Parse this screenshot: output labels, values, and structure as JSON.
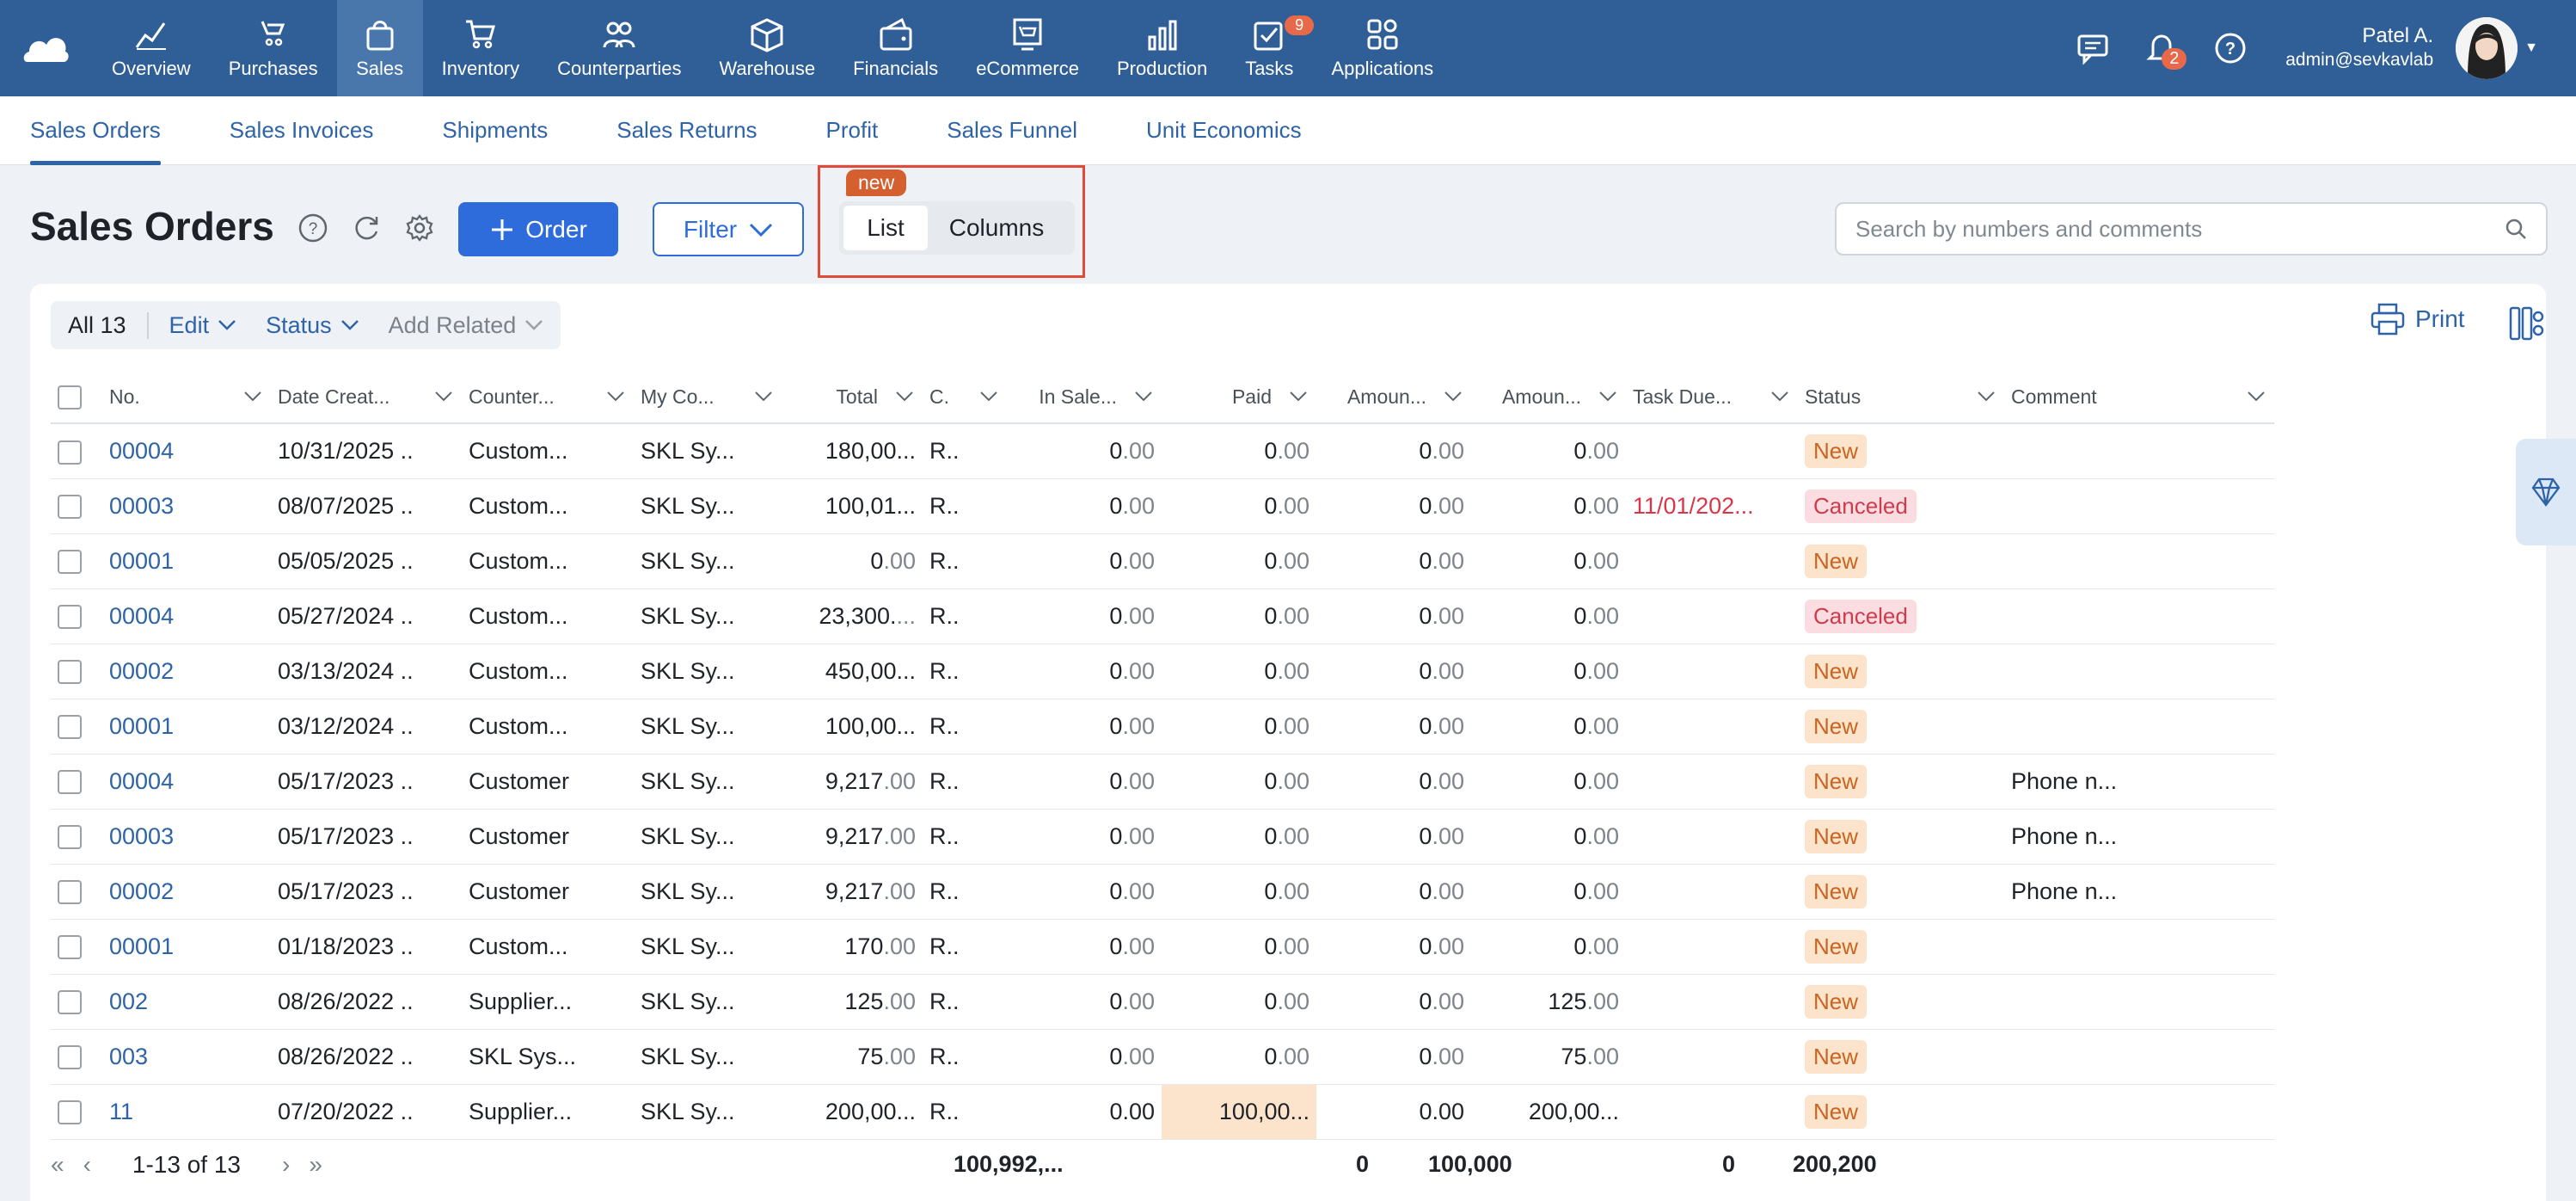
{
  "nav": {
    "items": [
      {
        "label": "Overview",
        "icon": "overview-icon"
      },
      {
        "label": "Purchases",
        "icon": "purchases-icon"
      },
      {
        "label": "Sales",
        "icon": "sales-icon",
        "active": true
      },
      {
        "label": "Inventory",
        "icon": "inventory-icon"
      },
      {
        "label": "Counterparties",
        "icon": "counterparties-icon"
      },
      {
        "label": "Warehouse",
        "icon": "warehouse-icon"
      },
      {
        "label": "Financials",
        "icon": "financials-icon"
      },
      {
        "label": "eCommerce",
        "icon": "ecommerce-icon"
      },
      {
        "label": "Production",
        "icon": "production-icon"
      },
      {
        "label": "Tasks",
        "icon": "tasks-icon",
        "badge": "9"
      },
      {
        "label": "Applications",
        "icon": "applications-icon"
      }
    ],
    "notifications_badge": "2",
    "user_name": "Patel A.",
    "user_email": "admin@sevkavlab"
  },
  "subnav": {
    "tabs": [
      "Sales Orders",
      "Sales Invoices",
      "Shipments",
      "Sales Returns",
      "Profit",
      "Sales Funnel",
      "Unit Economics"
    ]
  },
  "header": {
    "title": "Sales Orders",
    "order_label": "Order",
    "filter_label": "Filter",
    "new_tag": "new",
    "view_list": "List",
    "view_columns": "Columns",
    "search_placeholder": "Search by numbers and comments"
  },
  "toolbar": {
    "all_label": "All 13",
    "edit_label": "Edit",
    "status_label": "Status",
    "add_related_label": "Add Related",
    "print_label": "Print"
  },
  "table": {
    "columns": [
      "No.",
      "Date Creat...",
      "Counter...",
      "My Co...",
      "Total",
      "C.",
      "In Sale...",
      "Paid",
      "Amoun...",
      "Amoun...",
      "Task Due...",
      "Status",
      "Comment"
    ],
    "rows": [
      {
        "no": "00004",
        "date": "10/31/2025",
        "cp": "Custom...",
        "myco": "SKL Sy...",
        "total_i": "180,00...",
        "total_d": "",
        "c": "R..",
        "insale": "0",
        "paid": "0",
        "am1": "0",
        "am2": "0",
        "due": "",
        "status": "New",
        "comment": ""
      },
      {
        "no": "00003",
        "date": "08/07/2025",
        "cp": "Custom...",
        "myco": "SKL Sy...",
        "total_i": "100,01...",
        "total_d": "",
        "c": "R..",
        "insale": "0",
        "paid": "0",
        "am1": "0",
        "am2": "0",
        "due": "11/01/202...",
        "status": "Canceled",
        "comment": ""
      },
      {
        "no": "00001",
        "date": "05/05/2025",
        "cp": "Custom...",
        "myco": "SKL Sy...",
        "total_i": "0",
        "total_d": ".00",
        "c": "R..",
        "insale": "0",
        "paid": "0",
        "am1": "0",
        "am2": "0",
        "due": "",
        "status": "New",
        "comment": ""
      },
      {
        "no": "00004",
        "date": "05/27/2024",
        "cp": "Custom...",
        "myco": "SKL Sy...",
        "total_i": "23,300.",
        "total_d": "...",
        "c": "R..",
        "insale": "0",
        "paid": "0",
        "am1": "0",
        "am2": "0",
        "due": "",
        "status": "Canceled",
        "comment": ""
      },
      {
        "no": "00002",
        "date": "03/13/2024",
        "cp": "Custom...",
        "myco": "SKL Sy...",
        "total_i": "450,00...",
        "total_d": "",
        "c": "R..",
        "insale": "0",
        "paid": "0",
        "am1": "0",
        "am2": "0",
        "due": "",
        "status": "New",
        "comment": ""
      },
      {
        "no": "00001",
        "date": "03/12/2024",
        "cp": "Custom...",
        "myco": "SKL Sy...",
        "total_i": "100,00...",
        "total_d": "",
        "c": "R..",
        "insale": "0",
        "paid": "0",
        "am1": "0",
        "am2": "0",
        "due": "",
        "status": "New",
        "comment": ""
      },
      {
        "no": "00004",
        "date": "05/17/2023",
        "cp": "Customer",
        "myco": "SKL Sy...",
        "total_i": "9,217",
        "total_d": ".00",
        "c": "R..",
        "insale": "0",
        "paid": "0",
        "am1": "0",
        "am2": "0",
        "due": "",
        "status": "New",
        "comment": "Phone n..."
      },
      {
        "no": "00003",
        "date": "05/17/2023",
        "cp": "Customer",
        "myco": "SKL Sy...",
        "total_i": "9,217",
        "total_d": ".00",
        "c": "R..",
        "insale": "0",
        "paid": "0",
        "am1": "0",
        "am2": "0",
        "due": "",
        "status": "New",
        "comment": "Phone n..."
      },
      {
        "no": "00002",
        "date": "05/17/2023",
        "cp": "Customer",
        "myco": "SKL Sy...",
        "total_i": "9,217",
        "total_d": ".00",
        "c": "R..",
        "insale": "0",
        "paid": "0",
        "am1": "0",
        "am2": "0",
        "due": "",
        "status": "New",
        "comment": "Phone n..."
      },
      {
        "no": "00001",
        "date": "01/18/2023",
        "cp": "Custom...",
        "myco": "SKL Sy...",
        "total_i": "170",
        "total_d": ".00",
        "c": "R..",
        "insale": "0",
        "paid": "0",
        "am1": "0",
        "am2": "0",
        "due": "",
        "status": "New",
        "comment": ""
      },
      {
        "no": "002",
        "date": "08/26/2022",
        "cp": "Supplier...",
        "myco": "SKL Sy...",
        "total_i": "125",
        "total_d": ".00",
        "c": "R..",
        "insale": "0",
        "paid": "0",
        "am1": "0",
        "am2": "125",
        "due": "",
        "status": "New",
        "comment": ""
      },
      {
        "no": "003",
        "date": "08/26/2022",
        "cp": "SKL Sys...",
        "myco": "SKL Sy...",
        "total_i": "75",
        "total_d": ".00",
        "c": "R..",
        "insale": "0",
        "paid": "0",
        "am1": "0",
        "am2": "75",
        "due": "",
        "status": "New",
        "comment": ""
      },
      {
        "no": "11",
        "date": "07/20/2022",
        "cp": "Supplier...",
        "myco": "SKL Sy...",
        "total_i": "200,00...",
        "total_d": "",
        "c": "R..",
        "insale": "0.00",
        "paid": "100,00...",
        "am1": "0.00",
        "am2": "200,00...",
        "due": "",
        "status": "New",
        "comment": ""
      }
    ]
  },
  "footer": {
    "range": "1-13 of 13",
    "sum_total": "100,992,...",
    "sum_insale": "0",
    "sum_paid": "100,000",
    "sum_am1": "0",
    "sum_am2": "200,200"
  },
  "colors": {
    "nav_bg": "#2f5f96",
    "accent": "#2e6cdc",
    "highlight_border": "#e04a3a"
  }
}
